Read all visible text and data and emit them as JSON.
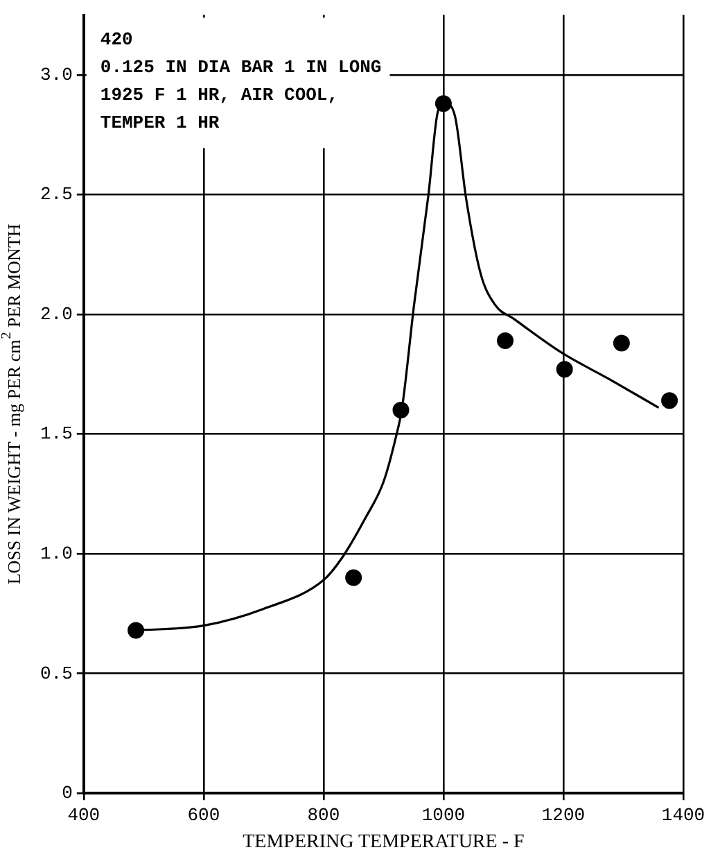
{
  "chart_data": {
    "type": "scatter",
    "xlabel": "TEMPERING TEMPERATURE - F",
    "ylabel": "LOSS IN WEIGHT - mg PER cm$^{2}$ PER MONTH",
    "annotations": [
      "420",
      "0.125 IN DIA BAR 1 IN LONG",
      "1925 F 1 HR, AIR COOL,",
      "TEMPER 1 HR"
    ],
    "xlim": [
      400,
      1400
    ],
    "xticks": [
      400,
      600,
      800,
      1000,
      1200,
      1400
    ],
    "ylim": [
      0,
      3.25
    ],
    "yticks": [
      0,
      0.5,
      {
        "value": 1,
        "label": "1.0"
      },
      1.5,
      {
        "value": 2,
        "label": "2.0"
      },
      2.5,
      {
        "value": 3,
        "label": "3.0"
      }
    ],
    "grid": true,
    "series": [
      {
        "type": "scatter",
        "color": "#000000",
        "marker": "circle",
        "x": [
          487,
          850,
          929,
          1000,
          1103,
          1202,
          1297,
          1377
        ],
        "values": [
          0.68,
          0.9,
          1.6,
          2.88,
          1.89,
          1.77,
          1.88,
          1.64
        ]
      },
      {
        "type": "line",
        "color": "#000000",
        "marker": "none",
        "x": [
          487,
          600,
          700,
          800,
          830,
          870,
          900,
          920,
          931,
          951,
          975,
          991,
          1003,
          1019,
          1038,
          1062,
          1086,
          1118,
          1197,
          1276,
          1359
        ],
        "values": [
          0.68,
          0.7,
          0.77,
          0.89,
          0.98,
          1.15,
          1.3,
          1.48,
          1.61,
          2.04,
          2.5,
          2.85,
          2.88,
          2.83,
          2.48,
          2.17,
          2.04,
          1.98,
          1.84,
          1.73,
          1.61
        ]
      }
    ]
  }
}
